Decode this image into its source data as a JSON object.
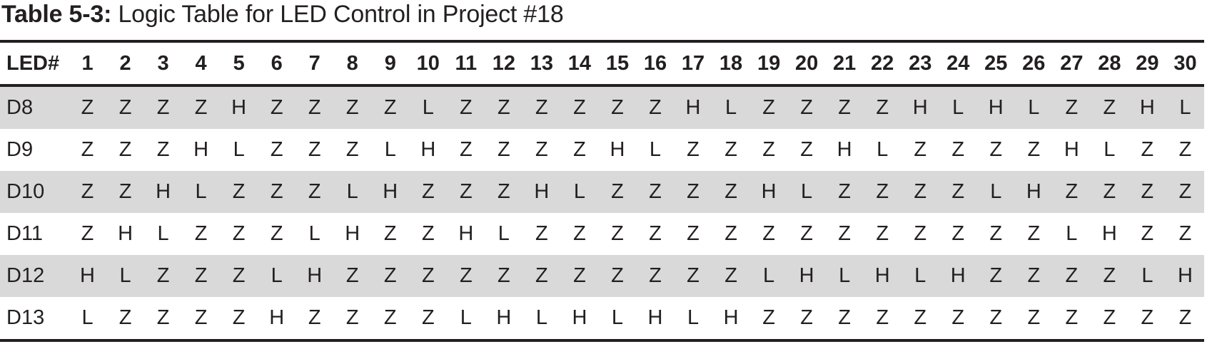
{
  "caption": {
    "label": "Table 5-3:",
    "text": " Logic Table for LED Control in Project #18"
  },
  "table": {
    "corner_header": "LED#",
    "columns": [
      "1",
      "2",
      "3",
      "4",
      "5",
      "6",
      "7",
      "8",
      "9",
      "10",
      "11",
      "12",
      "13",
      "14",
      "15",
      "16",
      "17",
      "18",
      "19",
      "20",
      "21",
      "22",
      "23",
      "24",
      "25",
      "26",
      "27",
      "28",
      "29",
      "30"
    ],
    "rows": [
      {
        "label": "D8",
        "cells": [
          "Z",
          "Z",
          "Z",
          "Z",
          "H",
          "Z",
          "Z",
          "Z",
          "Z",
          "L",
          "Z",
          "Z",
          "Z",
          "Z",
          "Z",
          "Z",
          "H",
          "L",
          "Z",
          "Z",
          "Z",
          "Z",
          "H",
          "L",
          "H",
          "L",
          "Z",
          "Z",
          "H",
          "L"
        ]
      },
      {
        "label": "D9",
        "cells": [
          "Z",
          "Z",
          "Z",
          "H",
          "L",
          "Z",
          "Z",
          "Z",
          "L",
          "H",
          "Z",
          "Z",
          "Z",
          "Z",
          "H",
          "L",
          "Z",
          "Z",
          "Z",
          "Z",
          "H",
          "L",
          "Z",
          "Z",
          "Z",
          "Z",
          "H",
          "L",
          "Z",
          "Z"
        ]
      },
      {
        "label": "D10",
        "cells": [
          "Z",
          "Z",
          "H",
          "L",
          "Z",
          "Z",
          "Z",
          "L",
          "H",
          "Z",
          "Z",
          "Z",
          "H",
          "L",
          "Z",
          "Z",
          "Z",
          "Z",
          "H",
          "L",
          "Z",
          "Z",
          "Z",
          "Z",
          "L",
          "H",
          "Z",
          "Z",
          "Z",
          "Z"
        ]
      },
      {
        "label": "D11",
        "cells": [
          "Z",
          "H",
          "L",
          "Z",
          "Z",
          "Z",
          "L",
          "H",
          "Z",
          "Z",
          "H",
          "L",
          "Z",
          "Z",
          "Z",
          "Z",
          "Z",
          "Z",
          "Z",
          "Z",
          "Z",
          "Z",
          "Z",
          "Z",
          "Z",
          "Z",
          "L",
          "H",
          "Z",
          "Z"
        ]
      },
      {
        "label": "D12",
        "cells": [
          "H",
          "L",
          "Z",
          "Z",
          "Z",
          "L",
          "H",
          "Z",
          "Z",
          "Z",
          "Z",
          "Z",
          "Z",
          "Z",
          "Z",
          "Z",
          "Z",
          "Z",
          "L",
          "H",
          "L",
          "H",
          "L",
          "H",
          "Z",
          "Z",
          "Z",
          "Z",
          "L",
          "H"
        ]
      },
      {
        "label": "D13",
        "cells": [
          "L",
          "Z",
          "Z",
          "Z",
          "Z",
          "H",
          "Z",
          "Z",
          "Z",
          "Z",
          "L",
          "H",
          "L",
          "H",
          "L",
          "H",
          "L",
          "H",
          "Z",
          "Z",
          "Z",
          "Z",
          "Z",
          "Z",
          "Z",
          "Z",
          "Z",
          "Z",
          "Z",
          "Z"
        ]
      }
    ]
  }
}
